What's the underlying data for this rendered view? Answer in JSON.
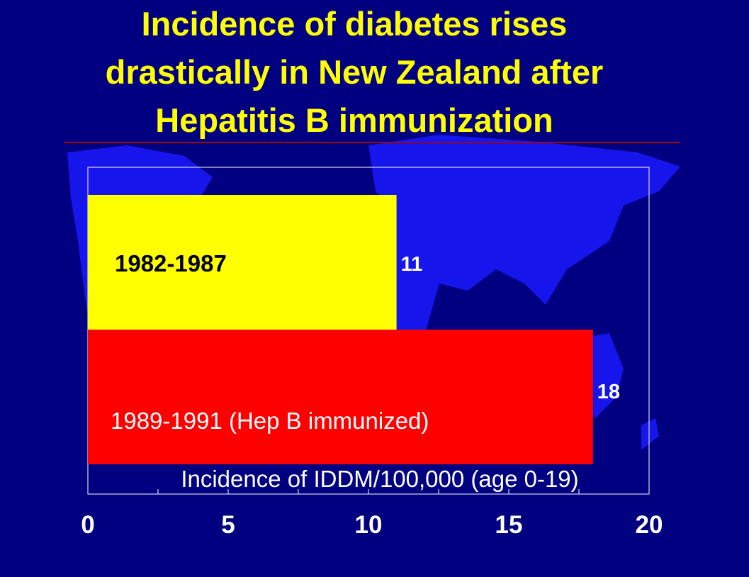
{
  "slide": {
    "title_lines": [
      "Incidence of diabetes rises",
      "drastically in New Zealand after",
      "Hepatitis B immunization"
    ]
  },
  "colors": {
    "background": "#000080",
    "map": "#1a1aff",
    "title": "#ffff00",
    "rule": "#aa0000"
  },
  "chart_data": {
    "type": "bar",
    "orientation": "horizontal",
    "categories": [
      "1982-1987",
      "1989-1991 (Hep B immunized)"
    ],
    "values": [
      11,
      18
    ],
    "data_labels": [
      "11",
      "18"
    ],
    "bar_colors": [
      "#ffff00",
      "#ff0000"
    ],
    "category_label_colors": [
      "#000000",
      "#ffffff"
    ],
    "xlabel": "Incidence of IDDM/100,000 (age 0-19)",
    "xlim": [
      0,
      20
    ],
    "xticks": [
      "0",
      "5",
      "10",
      "15",
      "20"
    ],
    "minor_tick_step": 2.5,
    "grid": false,
    "legend": "none"
  }
}
